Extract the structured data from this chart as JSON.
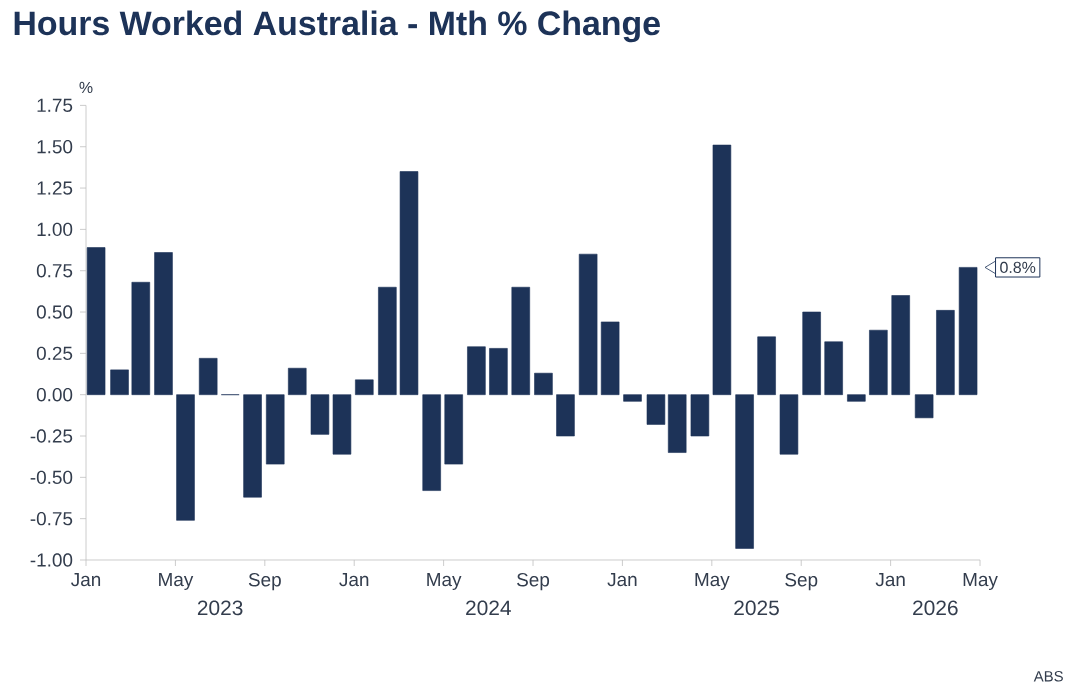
{
  "chart_data": {
    "type": "bar",
    "title": "Hours Worked Australia - Mth % Change",
    "ylabel": "%",
    "x": [
      "2023-01-15",
      "2023-02-15",
      "2023-03-15",
      "2023-04-15",
      "2023-05-15",
      "2023-06-15",
      "2023-07-15",
      "2023-08-15",
      "2023-09-15",
      "2023-10-15",
      "2023-11-15",
      "2023-12-15",
      "2024-01-15",
      "2024-02-15",
      "2024-03-15",
      "2024-04-15",
      "2024-05-15",
      "2024-06-15",
      "2024-07-15",
      "2024-08-15",
      "2024-09-15",
      "2024-10-15",
      "2024-11-15",
      "2024-12-15",
      "2025-01-15",
      "2025-02-15",
      "2025-03-15",
      "2025-04-15",
      "2025-05-15",
      "2025-06-15",
      "2025-07-15",
      "2025-08-15",
      "2025-09-15",
      "2025-10-15",
      "2025-11-15",
      "2025-12-15",
      "2026-01-15",
      "2026-02-15",
      "2026-03-15",
      "2026-04-15"
    ],
    "values": [
      0.89,
      0.15,
      0.68,
      0.86,
      -0.76,
      0.22,
      0.0,
      -0.62,
      -0.42,
      0.16,
      -0.24,
      -0.36,
      0.09,
      0.65,
      1.35,
      -0.58,
      -0.42,
      0.29,
      0.28,
      0.65,
      0.13,
      -0.25,
      0.85,
      0.44,
      -0.04,
      -0.18,
      -0.35,
      -0.25,
      1.51,
      -0.93,
      0.35,
      -0.36,
      0.5,
      0.32,
      -0.04,
      0.39,
      0.6,
      -0.14,
      0.51,
      0.77
    ],
    "value_labels": [
      null,
      null,
      null,
      null,
      null,
      null,
      null,
      null,
      null,
      null,
      null,
      null,
      null,
      null,
      null,
      null,
      null,
      null,
      null,
      null,
      null,
      null,
      null,
      null,
      null,
      null,
      null,
      null,
      null,
      null,
      null,
      null,
      null,
      null,
      null,
      null,
      null,
      null,
      null,
      "0.8%"
    ],
    "color": "#1d3358",
    "xlim": [
      "2023-01",
      "2026-05"
    ],
    "xticks": [
      {
        "value": "2023-01",
        "label": "Jan"
      },
      {
        "value": "2023-05",
        "label": "May"
      },
      {
        "value": "2023-09",
        "label": "Sep"
      },
      {
        "value": "2024-01",
        "label": "Jan"
      },
      {
        "value": "2024-05",
        "label": "May"
      },
      {
        "value": "2024-09",
        "label": "Sep"
      },
      {
        "value": "2025-01",
        "label": "Jan"
      },
      {
        "value": "2025-05",
        "label": "May"
      },
      {
        "value": "2025-09",
        "label": "Sep"
      },
      {
        "value": "2026-01",
        "label": "Jan"
      },
      {
        "value": "2026-05",
        "label": "May"
      }
    ],
    "ylim": [
      -1.0,
      1.75
    ],
    "yticks": [
      {
        "value": -1.0,
        "label": "-1.00"
      },
      {
        "value": -0.75,
        "label": "-0.75"
      },
      {
        "value": -0.5,
        "label": "-0.50"
      },
      {
        "value": -0.25,
        "label": "-0.25"
      },
      {
        "value": 0.0,
        "label": "0.00"
      },
      {
        "value": 0.25,
        "label": "0.25"
      },
      {
        "value": 0.5,
        "label": "0.50"
      },
      {
        "value": 0.75,
        "label": "0.75"
      },
      {
        "value": 1.0,
        "label": "1.00"
      },
      {
        "value": 1.25,
        "label": "1.25"
      },
      {
        "value": 1.5,
        "label": "1.50"
      },
      {
        "value": 1.75,
        "label": "1.75"
      }
    ],
    "annotations": [
      "2023",
      "2024",
      "2025",
      "2026",
      "ABS"
    ]
  }
}
